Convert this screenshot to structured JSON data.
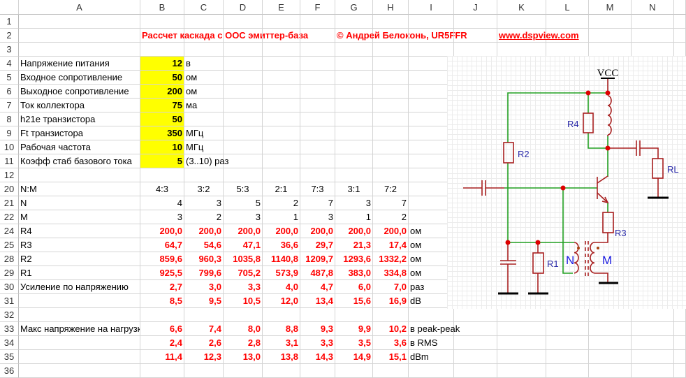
{
  "columns": [
    "A",
    "B",
    "C",
    "D",
    "E",
    "F",
    "G",
    "H",
    "I",
    "J",
    "K",
    "L",
    "M",
    "N"
  ],
  "row_numbers": [
    "1",
    "2",
    "3",
    "4",
    "5",
    "6",
    "7",
    "8",
    "9",
    "10",
    "11",
    "12",
    "20",
    "21",
    "22",
    "24",
    "25",
    "28",
    "29",
    "30",
    "31",
    "32",
    "33",
    "34",
    "35",
    "36"
  ],
  "header": {
    "title": "Рассчет каскада с ООС эмиттер-база",
    "author": "© Андрей Белоконь, UR5FFR",
    "website": "www.dspview.com"
  },
  "inputs": [
    {
      "label": "Напряжение питания",
      "value": "12",
      "unit": "в"
    },
    {
      "label": "Входное сопротивление",
      "value": "50",
      "unit": "ом"
    },
    {
      "label": "Выходное сопротивление",
      "value": "200",
      "unit": "ом"
    },
    {
      "label": "Ток коллектора",
      "value": "75",
      "unit": "ма"
    },
    {
      "label": "h21e транзистора",
      "value": "50",
      "unit": ""
    },
    {
      "label": "Ft транзистора",
      "value": "350",
      "unit": "МГц"
    },
    {
      "label": "Рабочая частота",
      "value": "10",
      "unit": "МГц"
    },
    {
      "label": "Коэфф стаб базового тока",
      "value": "5",
      "unit": "(3..10) раз"
    }
  ],
  "ratio_table": {
    "ratio_label": "N:M",
    "ratios": [
      "4:3",
      "3:2",
      "5:3",
      "2:1",
      "7:3",
      "3:1",
      "7:2"
    ],
    "rows": [
      {
        "label": "N",
        "values": [
          "4",
          "3",
          "5",
          "2",
          "7",
          "3",
          "7"
        ],
        "unit": ""
      },
      {
        "label": "M",
        "values": [
          "3",
          "2",
          "3",
          "1",
          "3",
          "1",
          "2"
        ],
        "unit": ""
      },
      {
        "label": "R4",
        "values": [
          "200,0",
          "200,0",
          "200,0",
          "200,0",
          "200,0",
          "200,0",
          "200,0"
        ],
        "unit": "ом"
      },
      {
        "label": "R3",
        "values": [
          "64,7",
          "54,6",
          "47,1",
          "36,6",
          "29,7",
          "21,3",
          "17,4"
        ],
        "unit": "ом"
      },
      {
        "label": "R2",
        "values": [
          "859,6",
          "960,3",
          "1035,8",
          "1140,8",
          "1209,7",
          "1293,6",
          "1332,2"
        ],
        "unit": "ом"
      },
      {
        "label": "R1",
        "values": [
          "925,5",
          "799,6",
          "705,2",
          "573,9",
          "487,8",
          "383,0",
          "334,8"
        ],
        "unit": "ом"
      },
      {
        "label": "Усиление по напряжению",
        "values": [
          "2,7",
          "3,0",
          "3,3",
          "4,0",
          "4,7",
          "6,0",
          "7,0"
        ],
        "unit": "раз"
      },
      {
        "label": "",
        "values": [
          "8,5",
          "9,5",
          "10,5",
          "12,0",
          "13,4",
          "15,6",
          "16,9"
        ],
        "unit": "dB"
      },
      {
        "label": "Макс напряжение на нагрузке",
        "values": [
          "6,6",
          "7,4",
          "8,0",
          "8,8",
          "9,3",
          "9,9",
          "10,2"
        ],
        "unit": "в peak-peak"
      },
      {
        "label": "",
        "values": [
          "2,4",
          "2,6",
          "2,8",
          "3,1",
          "3,3",
          "3,5",
          "3,6"
        ],
        "unit": "в RMS"
      },
      {
        "label": "",
        "values": [
          "11,4",
          "12,3",
          "13,0",
          "13,8",
          "14,3",
          "14,9",
          "15,1"
        ],
        "unit": "dBm"
      }
    ]
  },
  "diagram": {
    "vcc": "VCC",
    "labels": {
      "r1": "R1",
      "r2": "R2",
      "r3": "R3",
      "r4": "R4",
      "rl": "RL",
      "n": "N",
      "m": "M"
    },
    "colors": {
      "wire": "#22a022",
      "component": "#a82020",
      "node": "#dd0000",
      "label": "#2a2aa8"
    }
  }
}
